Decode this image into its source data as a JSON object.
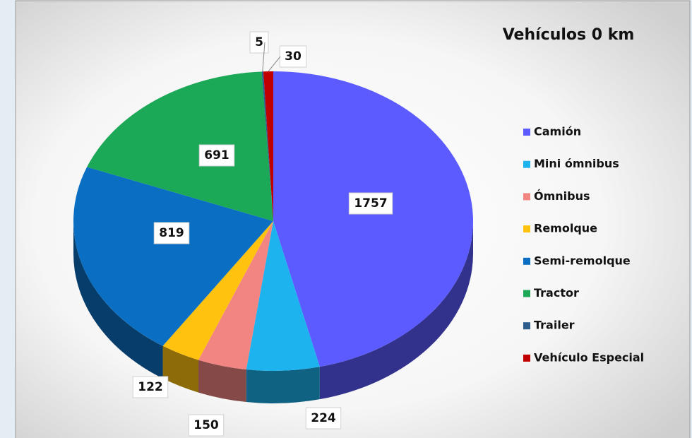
{
  "chart_data": {
    "type": "pie3d",
    "title": "Vehículos 0 km",
    "categories": [
      "Camión",
      "Mini ómnibus",
      "Ómnibus",
      "Remolque",
      "Semi-remolque",
      "Tractor",
      "Trailer",
      "Vehículo Especial"
    ],
    "values": [
      1757,
      224,
      150,
      122,
      819,
      691,
      5,
      30
    ],
    "colors": [
      "#5b5bff",
      "#1db3ef",
      "#f28482",
      "#ffc20e",
      "#0a6fc2",
      "#1ba857",
      "#2c5d8c",
      "#c00000"
    ],
    "legend": "right"
  }
}
